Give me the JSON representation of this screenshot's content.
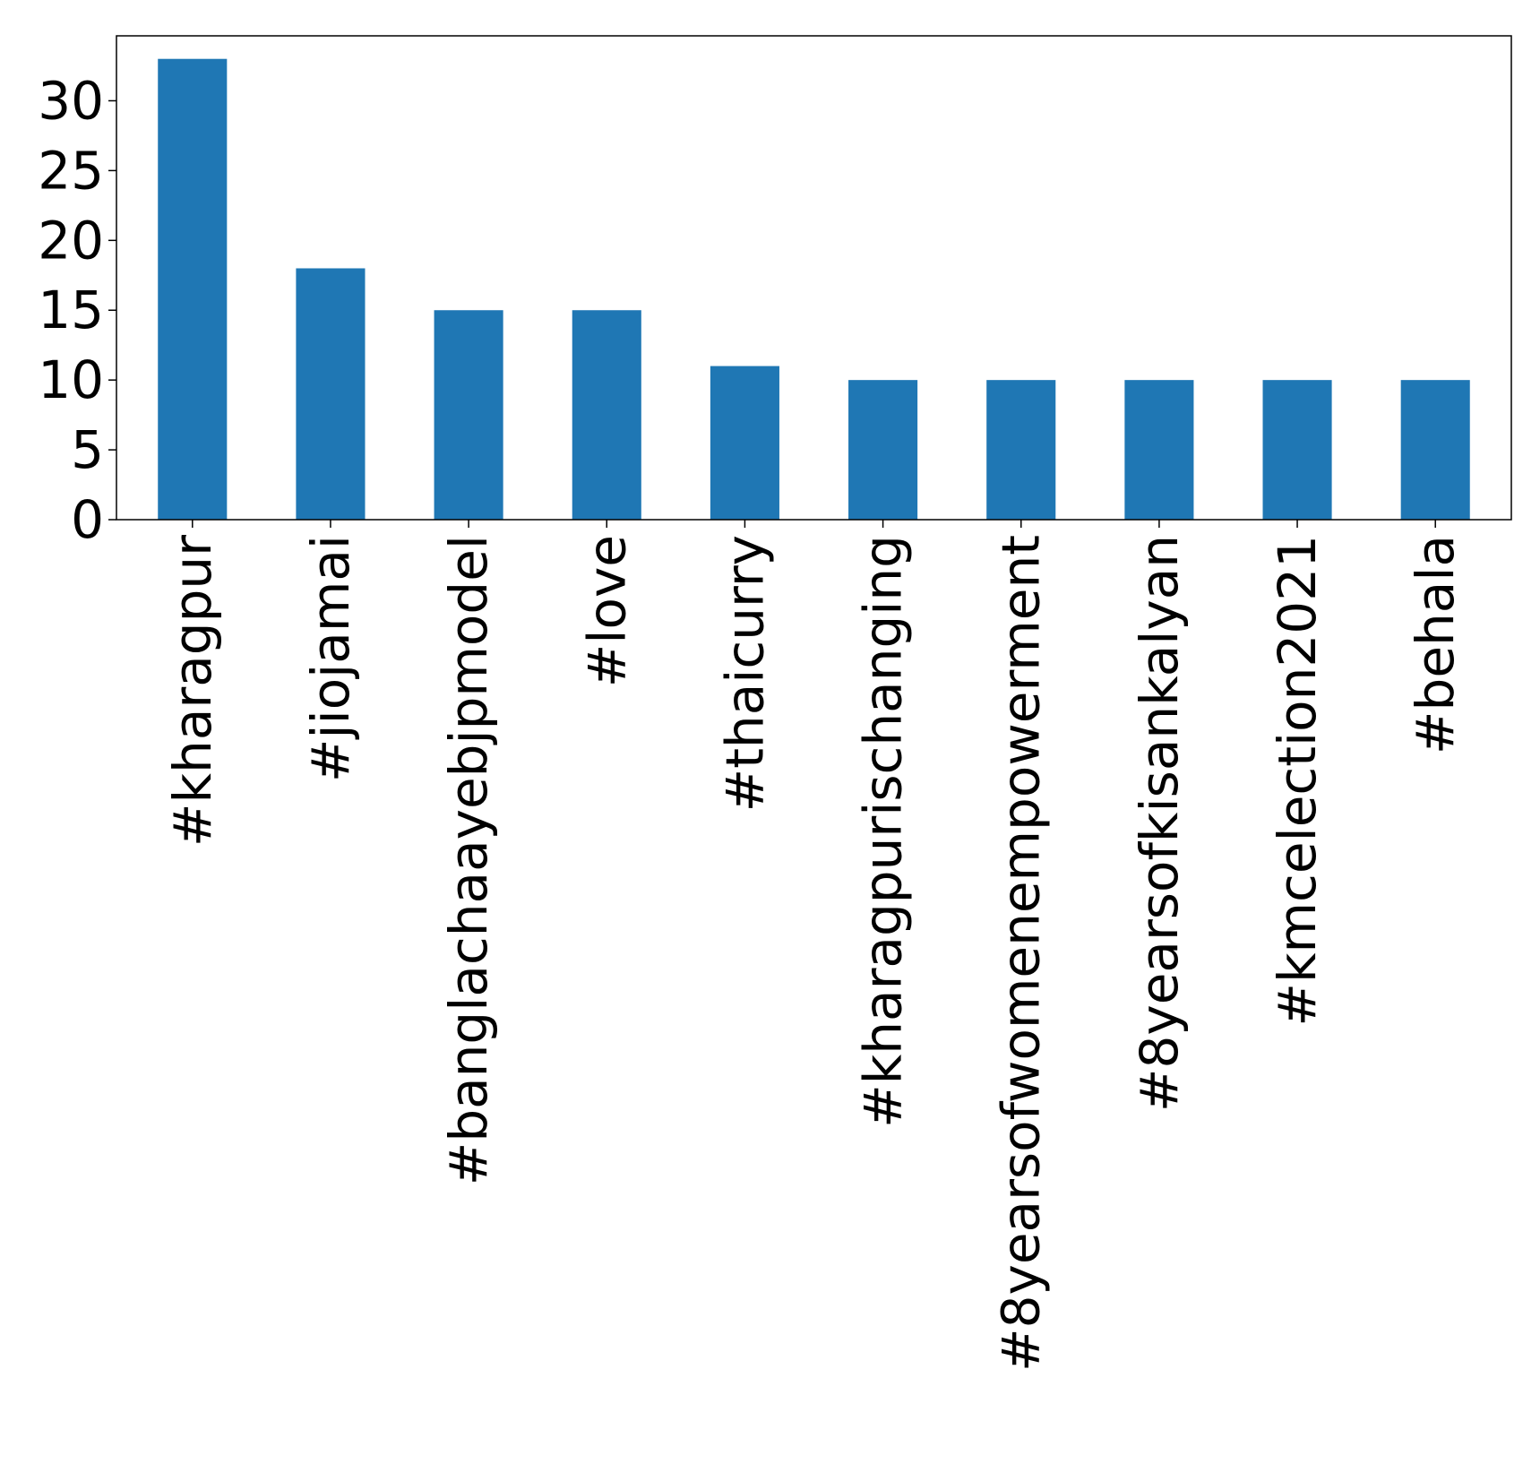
{
  "chart_data": {
    "type": "bar",
    "title": "",
    "xlabel": "",
    "ylabel": "",
    "categories": [
      "#kharagpur",
      "#jiojamai",
      "#banglachaayebjpmodel",
      "#love",
      "#thaicurry",
      "#kharagpurischanging",
      "#8yearsofwomenempowerment",
      "#8yearsofkisankalyan",
      "#kmcelection2021",
      "#behala"
    ],
    "values": [
      33,
      18,
      15,
      15,
      11,
      10,
      10,
      10,
      10,
      10
    ],
    "ylim": [
      0,
      34.65
    ],
    "yticks": [
      0,
      5,
      10,
      15,
      20,
      25,
      30
    ],
    "grid": false,
    "legend": "none",
    "bar_color": "#1f77b4"
  }
}
